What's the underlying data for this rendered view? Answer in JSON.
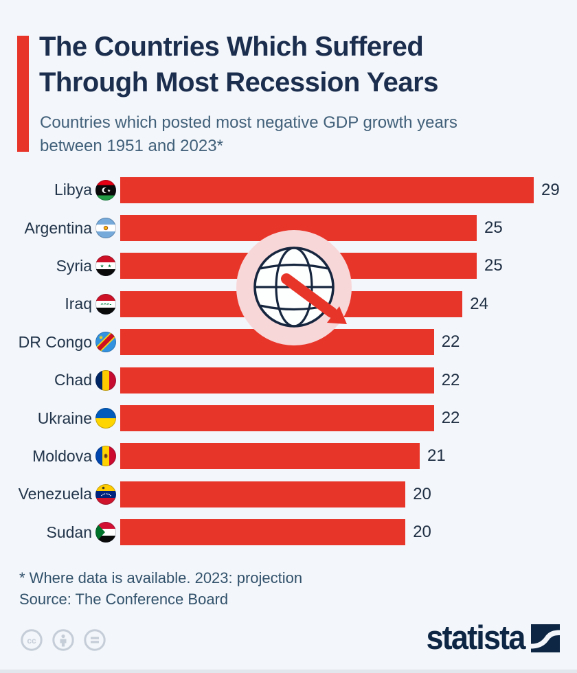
{
  "header": {
    "title_line1": "The Countries Which Suffered",
    "title_line2": "Through Most Recession Years",
    "subtitle_line1": "Countries which posted most negative GDP growth years",
    "subtitle_line2": "between 1951 and 2023*"
  },
  "chart_data": {
    "type": "bar",
    "orientation": "horizontal",
    "title": "The Countries Which Suffered Through Most Recession Years",
    "subtitle": "Countries which posted most negative GDP growth years between 1951 and 2023*",
    "categories": [
      "Libya",
      "Argentina",
      "Syria",
      "Iraq",
      "DR Congo",
      "Chad",
      "Ukraine",
      "Moldova",
      "Venezuela",
      "Sudan"
    ],
    "values": [
      29,
      25,
      25,
      24,
      22,
      22,
      22,
      21,
      20,
      20
    ],
    "flag_icons": [
      "libya-flag-icon",
      "argentina-flag-icon",
      "syria-flag-icon",
      "iraq-flag-icon",
      "drcongo-flag-icon",
      "chad-flag-icon",
      "ukraine-flag-icon",
      "moldova-flag-icon",
      "venezuela-flag-icon",
      "sudan-flag-icon"
    ],
    "value_labels_shown": true,
    "xlim": [
      0,
      29
    ],
    "grid": false,
    "legend": "none",
    "bar_color": "#e8352a"
  },
  "decoration": {
    "center_icon": "globe-declining-arrow-icon"
  },
  "footnote": {
    "line1": "* Where data is available. 2023: projection",
    "line2": "Source: The Conference Board"
  },
  "branding": {
    "logo_text": "statista",
    "logo_mark_icon": "statista-logo-icon",
    "license_icons": [
      "cc-license-icon",
      "attribution-person-icon",
      "equals-license-icon"
    ]
  },
  "colors": {
    "background": "#f3f6fa",
    "bar_red": "#e8352a",
    "accent_red": "#e8352a",
    "title_navy": "#1c2e4e",
    "subtitle_blue_gray": "#41607a",
    "label_navy": "#21344a",
    "pink_circle": "#f8d7d9",
    "globe_line_navy": "#16263e",
    "license_gray": "#c5cdd8",
    "brand_navy": "#0d2644"
  }
}
